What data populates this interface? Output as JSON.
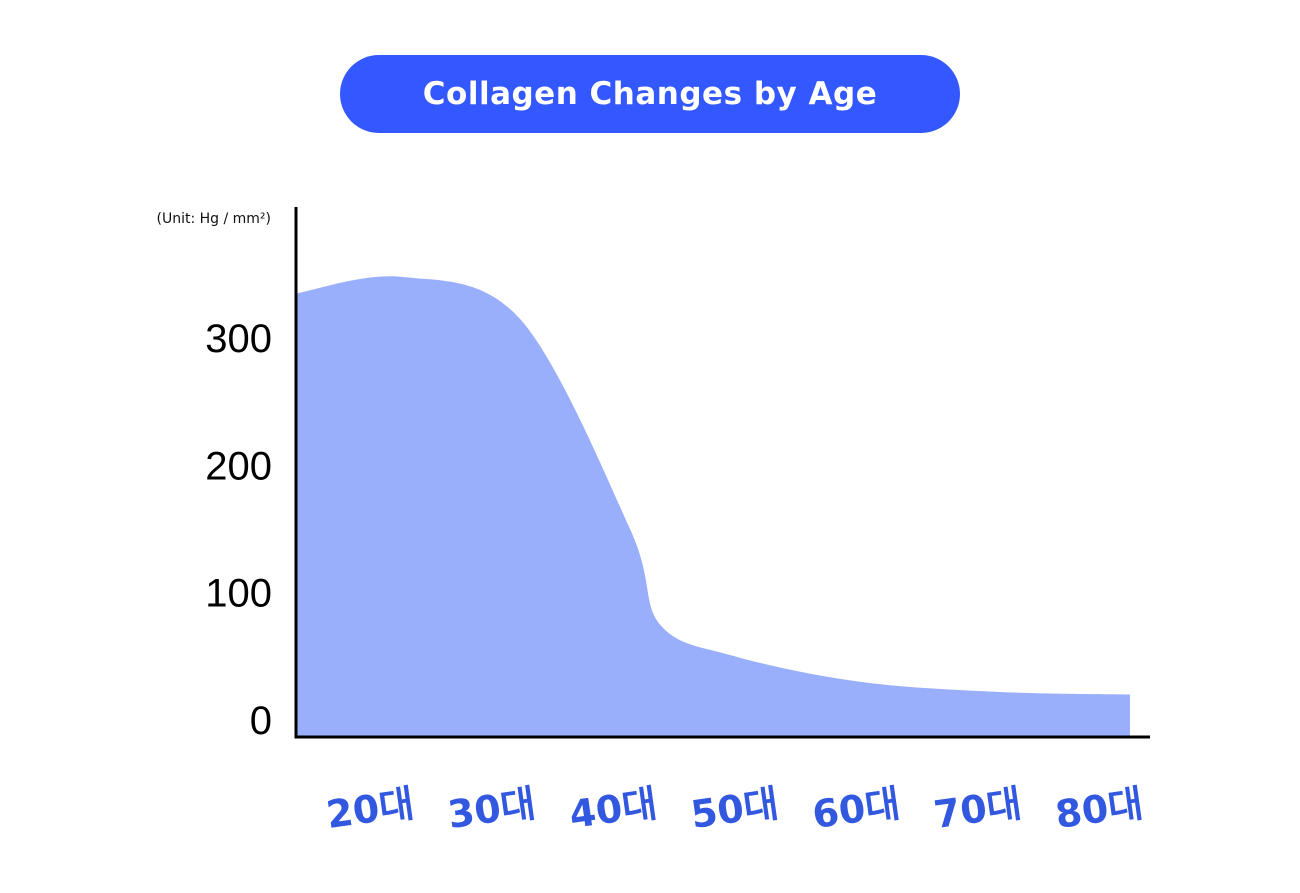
{
  "title": "Collagen Changes by Age",
  "colors": {
    "title_bg": "#3358ff",
    "area_fill": "#9aaffb",
    "x_tick": "#3358e0",
    "axis": "#000000"
  },
  "chart_data": {
    "type": "area",
    "title": "Collagen Changes by Age",
    "unit_label": "(Unit: Hg / mm²)",
    "xlabel": "",
    "ylabel": "",
    "categories": [
      "20대",
      "30대",
      "40대",
      "50대",
      "60대",
      "70대",
      "80대"
    ],
    "y_ticks": [
      "300",
      "200",
      "100",
      "0"
    ],
    "y_tick_values": [
      300,
      200,
      100,
      0
    ],
    "ylim": [
      0,
      400
    ],
    "series": [
      {
        "x": [
          "start",
          "20대",
          "30대",
          "40대",
          "45대",
          "50대",
          "60대",
          "70대",
          "80대",
          "end"
        ],
        "values": [
          335,
          348,
          315,
          150,
          75,
          50,
          30,
          22,
          20,
          20
        ]
      }
    ],
    "grid": false,
    "legend": "none"
  }
}
